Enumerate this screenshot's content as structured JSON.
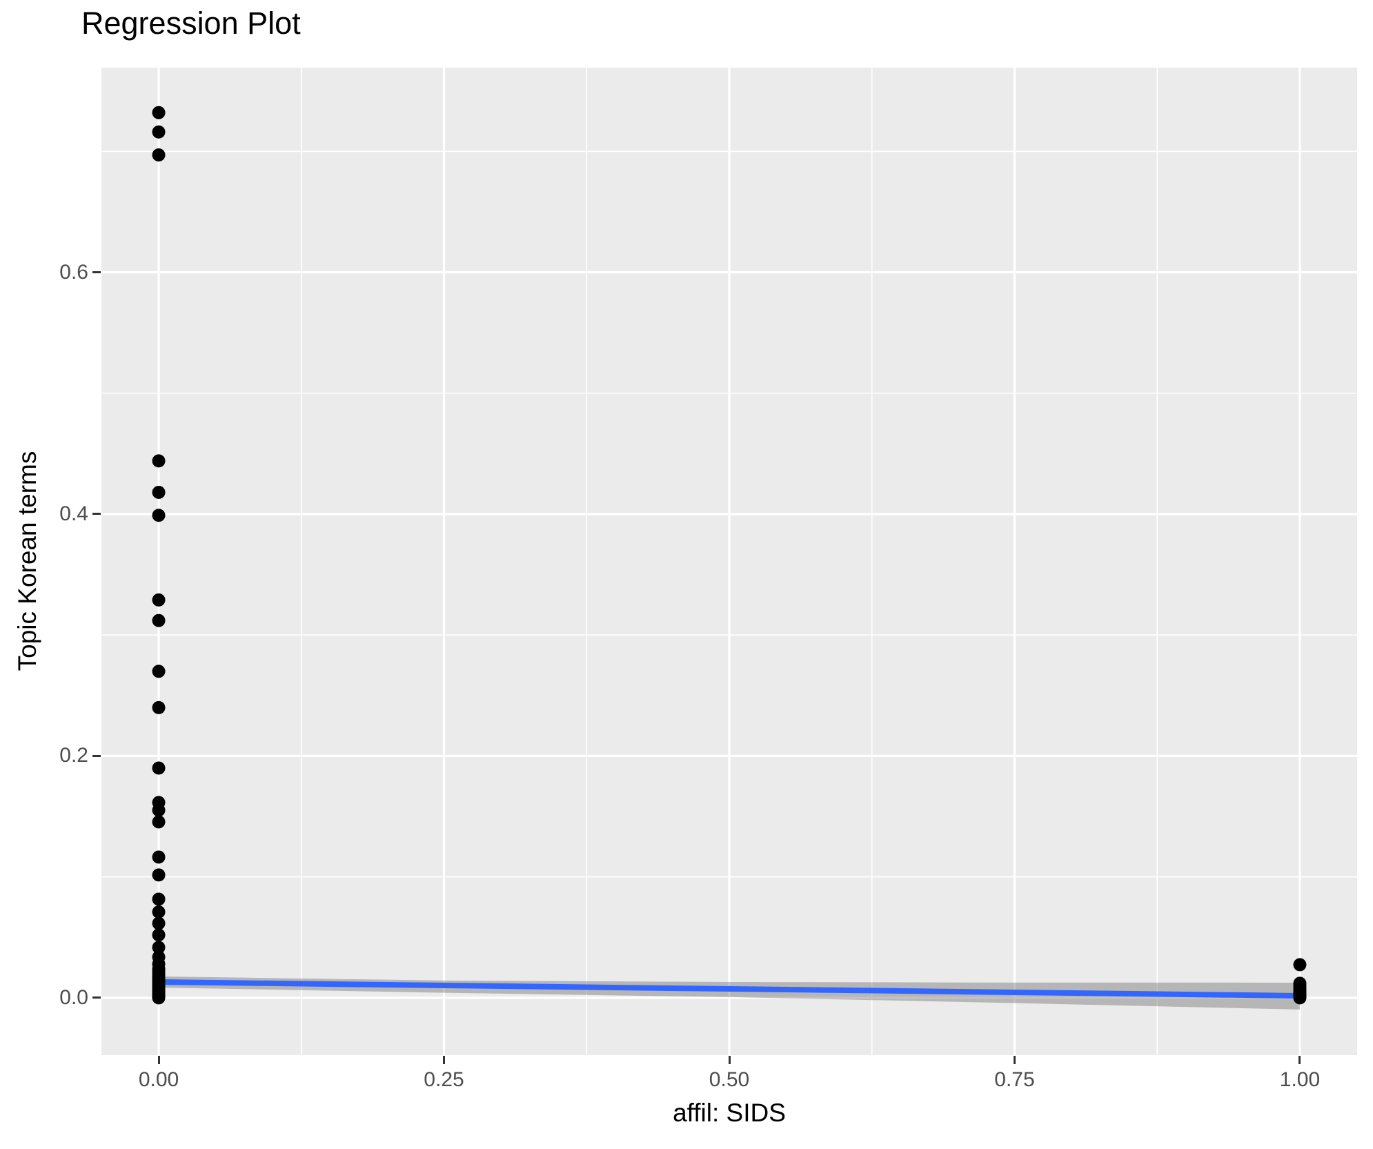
{
  "chart_data": {
    "type": "scatter",
    "title": "Regression Plot",
    "xlabel": "affil: SIDS",
    "ylabel": "Topic Korean terms",
    "xlim": [
      -0.0502,
      1.0502
    ],
    "ylim": [
      -0.0474,
      0.7692
    ],
    "grid": true,
    "legend": "none",
    "axes": {
      "x": {
        "major_ticks": [
          0,
          0.25,
          0.5,
          0.75,
          1
        ],
        "tick_labels": [
          "0.00",
          "0.25",
          "0.50",
          "0.75",
          "1.00"
        ],
        "minor_ticks": [
          0.125,
          0.375,
          0.625,
          0.875
        ]
      },
      "y": {
        "major_ticks": [
          0,
          0.2,
          0.4,
          0.6
        ],
        "tick_labels": [
          "0.0",
          "0.2",
          "0.4",
          "0.6"
        ],
        "minor_ticks": [
          0.1,
          0.3,
          0.5,
          0.7
        ]
      }
    },
    "series": [
      {
        "name": "observations",
        "type": "points",
        "points": [
          [
            0,
            0.732
          ],
          [
            0,
            0.716
          ],
          [
            0,
            0.697
          ],
          [
            0,
            0.444
          ],
          [
            0,
            0.418
          ],
          [
            0,
            0.399
          ],
          [
            0,
            0.329
          ],
          [
            0,
            0.312
          ],
          [
            0,
            0.27
          ],
          [
            0,
            0.24
          ],
          [
            0,
            0.19
          ],
          [
            0,
            0.1615
          ],
          [
            0,
            0.1552
          ],
          [
            0,
            0.1455
          ],
          [
            0,
            0.1164
          ],
          [
            0,
            0.1016
          ],
          [
            0,
            0.0816
          ],
          [
            0,
            0.071
          ],
          [
            0,
            0.0616
          ],
          [
            0,
            0.052
          ],
          [
            0,
            0.0417
          ],
          [
            0,
            0.0337
          ],
          [
            0,
            0.028
          ],
          [
            0,
            0.024
          ],
          [
            0,
            0.0215
          ],
          [
            0,
            0.019
          ],
          [
            0,
            0.017
          ],
          [
            0,
            0.015
          ],
          [
            0,
            0.0135
          ],
          [
            0,
            0.012
          ],
          [
            0,
            0.0105
          ],
          [
            0,
            0.009
          ],
          [
            0,
            0.0075
          ],
          [
            0,
            0.006
          ],
          [
            0,
            0.005
          ],
          [
            0,
            0.004
          ],
          [
            0,
            0.003
          ],
          [
            0,
            0.002
          ],
          [
            0,
            0.001
          ],
          [
            0,
            0.0005
          ],
          [
            0,
            0.0
          ],
          [
            1,
            0.0274
          ],
          [
            1,
            0.012
          ],
          [
            1,
            0.01
          ],
          [
            1,
            0.008
          ],
          [
            1,
            0.006
          ],
          [
            1,
            0.0045
          ],
          [
            1,
            0.003
          ],
          [
            1,
            0.002
          ],
          [
            1,
            0.001
          ],
          [
            1,
            0.0
          ]
        ]
      },
      {
        "name": "regression-line",
        "type": "line",
        "points": [
          [
            0,
            0.0131
          ],
          [
            1,
            0.0017
          ]
        ]
      },
      {
        "name": "confidence-band",
        "type": "band",
        "upper": [
          [
            0,
            0.0177
          ],
          [
            0.25,
            0.0143
          ],
          [
            0.5,
            0.0131
          ],
          [
            0.75,
            0.0126
          ],
          [
            1,
            0.01255
          ]
        ],
        "lower": [
          [
            0,
            0.0085
          ],
          [
            0.25,
            0.0042
          ],
          [
            0.5,
            0.0006
          ],
          [
            0.75,
            -0.0043
          ],
          [
            1,
            -0.0097
          ]
        ]
      }
    ],
    "colors": {
      "panel_bg": "#EBEBEB",
      "grid": "#FFFFFF",
      "point": "#000000",
      "line": "#3366FF",
      "band": "rgba(102,102,102,0.4)",
      "tick_text": "#4D4D4D",
      "tick_mark": "#333333",
      "axis_title": "#000000",
      "title_text": "#000000"
    },
    "style": {
      "point_radius": 9.5,
      "line_width": 8,
      "major_grid_width": 3.2,
      "minor_grid_width": 1.6
    }
  }
}
